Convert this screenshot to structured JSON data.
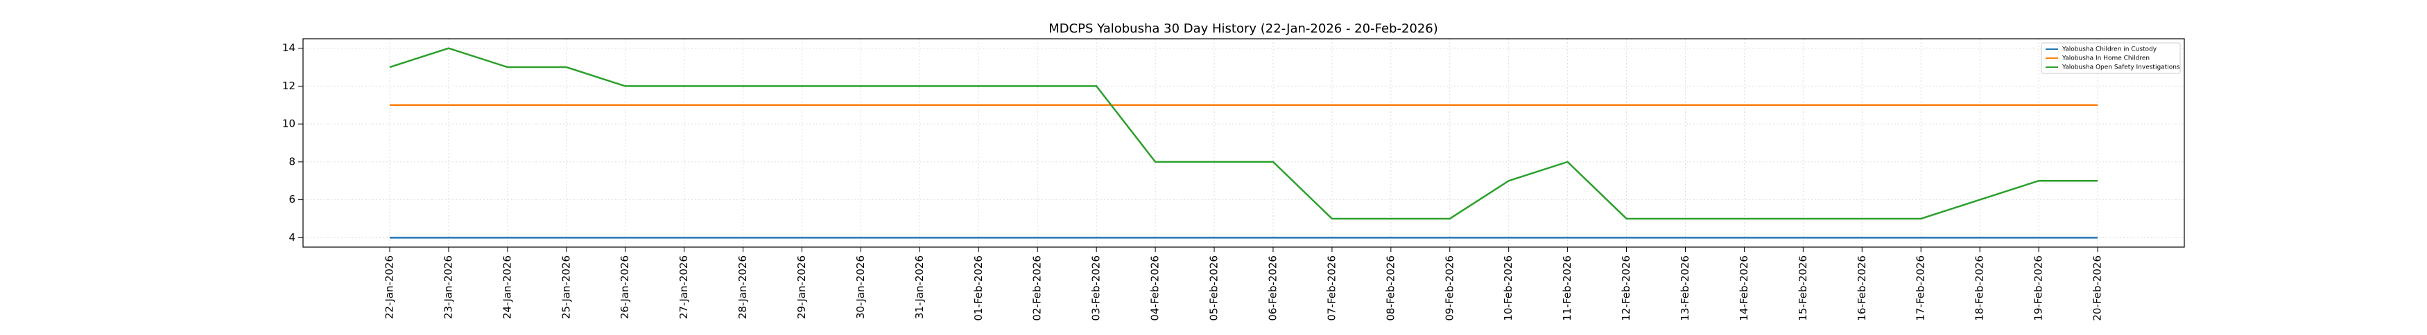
{
  "chart_data": {
    "type": "line",
    "title": "MDCPS Yalobusha 30 Day History (22-Jan-2026 - 20-Feb-2026)",
    "categories": [
      "22-Jan-2026",
      "23-Jan-2026",
      "24-Jan-2026",
      "25-Jan-2026",
      "26-Jan-2026",
      "27-Jan-2026",
      "28-Jan-2026",
      "29-Jan-2026",
      "30-Jan-2026",
      "31-Jan-2026",
      "01-Feb-2026",
      "02-Feb-2026",
      "03-Feb-2026",
      "04-Feb-2026",
      "05-Feb-2026",
      "06-Feb-2026",
      "07-Feb-2026",
      "08-Feb-2026",
      "09-Feb-2026",
      "10-Feb-2026",
      "11-Feb-2026",
      "12-Feb-2026",
      "13-Feb-2026",
      "14-Feb-2026",
      "15-Feb-2026",
      "16-Feb-2026",
      "17-Feb-2026",
      "18-Feb-2026",
      "19-Feb-2026",
      "20-Feb-2026"
    ],
    "series": [
      {
        "name": "Yalobusha Children in Custody",
        "color": "#1f77b4",
        "values": [
          4,
          4,
          4,
          4,
          4,
          4,
          4,
          4,
          4,
          4,
          4,
          4,
          4,
          4,
          4,
          4,
          4,
          4,
          4,
          4,
          4,
          4,
          4,
          4,
          4,
          4,
          4,
          4,
          4,
          4
        ]
      },
      {
        "name": "Yalobusha In Home Children",
        "color": "#ff7f0e",
        "values": [
          11,
          11,
          11,
          11,
          11,
          11,
          11,
          11,
          11,
          11,
          11,
          11,
          11,
          11,
          11,
          11,
          11,
          11,
          11,
          11,
          11,
          11,
          11,
          11,
          11,
          11,
          11,
          11,
          11,
          11
        ]
      },
      {
        "name": "Yalobusha Open Safety Investigations",
        "color": "#2ca02c",
        "values": [
          13,
          14,
          13,
          13,
          12,
          12,
          12,
          12,
          12,
          12,
          12,
          12,
          12,
          8,
          8,
          8,
          5,
          5,
          5,
          7,
          8,
          5,
          5,
          5,
          5,
          5,
          5,
          6,
          7,
          7
        ]
      }
    ],
    "ylim": [
      3.5,
      14.5
    ],
    "yticks": [
      4,
      6,
      8,
      10,
      12,
      14
    ],
    "grid": true,
    "legend": "upper right"
  }
}
